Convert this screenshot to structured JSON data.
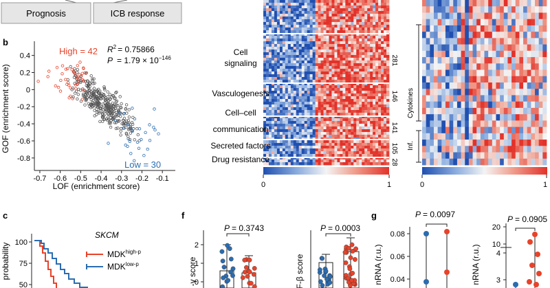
{
  "top_boxes": {
    "prognosis": "Prognosis",
    "icb": "ICB response"
  },
  "panel_labels": {
    "b": "b",
    "c": "c",
    "f": "f",
    "g": "g"
  },
  "colors": {
    "red": "#e8432a",
    "blue": "#2b6cb0",
    "grey": "#555555",
    "box_fill": "#e6e6e6"
  },
  "chart_data": [
    {
      "type": "scatter",
      "panel": "b",
      "xlabel": "LOF (enrichment score)",
      "ylabel": "GOF (enrichment score)",
      "xlim": [
        -0.72,
        -0.04
      ],
      "ylim": [
        -0.93,
        0.55
      ],
      "xticks": [
        "-0.7",
        "-0.6",
        "-0.5",
        "-0.4",
        "-0.3",
        "-0.2",
        "-0.1"
      ],
      "yticks": [
        "0.4",
        "0.2",
        "0",
        "-0.2",
        "-0.4",
        "-0.6",
        "-0.8"
      ],
      "groups": [
        {
          "name": "High",
          "label": "High = 42",
          "color": "#e8432a",
          "count": 42,
          "center": [
            -0.55,
            0.12
          ],
          "spread": [
            0.06,
            0.12
          ]
        },
        {
          "name": "Low",
          "label": "Low = 30",
          "color": "#2b6cb0",
          "count": 30,
          "center": [
            -0.22,
            -0.52
          ],
          "spread": [
            0.06,
            0.15
          ]
        },
        {
          "name": "Other",
          "color": "#555555",
          "count": 340,
          "center": [
            -0.38,
            -0.18
          ],
          "spread": [
            0.07,
            0.14
          ]
        }
      ],
      "annotations": {
        "r2": "R² = 0.75866",
        "r2_sym": "R",
        "r2_val": "= 0.75866",
        "p_sym": "P",
        "p_val": "= 1.79 × 10",
        "p_exp": "−146"
      }
    },
    {
      "type": "heatmap",
      "panel": "middle",
      "rows": [
        {
          "label_lines": [
            "Cell",
            "signaling"
          ],
          "count": "281"
        },
        {
          "label_lines": [
            "Vasculogenesis"
          ],
          "count": "146"
        },
        {
          "label_lines": [
            "Cell–cell",
            "communication"
          ],
          "count": "141"
        },
        {
          "label_lines": [
            "Secreted factors"
          ],
          "count": "105"
        },
        {
          "label_lines": [
            "Drug resistance"
          ],
          "count": "28"
        }
      ],
      "colorbar": {
        "min": "0",
        "max": "1"
      }
    },
    {
      "type": "heatmap",
      "panel": "right",
      "row_groups": [
        "Cytokines",
        "Inf."
      ],
      "colorbar": {
        "min": "0",
        "max": "1"
      }
    },
    {
      "type": "line",
      "panel": "c",
      "title": "SKCM",
      "ylabel": "probability",
      "yticks": [
        "100",
        "75",
        "50"
      ],
      "series": [
        {
          "name": "MDK",
          "sup": "high-p",
          "color": "#e8432a"
        },
        {
          "name": "MDK",
          "sup": "low-p",
          "color": "#2b6cb0"
        }
      ]
    },
    {
      "type": "box",
      "panel": "f-left",
      "ylabel": "-γ score",
      "p_label": "P = 0.3743",
      "p_sym": "P",
      "p_val": "= 0.3743",
      "yticks": [
        "2",
        "1",
        "0"
      ]
    },
    {
      "type": "box",
      "panel": "f-right",
      "ylabel": "F-β score",
      "p_label": "P = 0.0003",
      "p_sym": "P",
      "p_val": "= 0.0003"
    },
    {
      "type": "scatter",
      "panel": "g-left",
      "ylabel": "nRNA (r.u.)",
      "p_sym": "P",
      "p_val": "= 0.0097",
      "yticks": [
        "0.08",
        "0.06",
        "0.04"
      ]
    },
    {
      "type": "scatter",
      "panel": "g-right",
      "ylabel": "nRNA (r.u.)",
      "p_sym": "P",
      "p_val": "= 0.0905",
      "yticks": [
        "20",
        "10",
        "4",
        "3"
      ]
    }
  ]
}
